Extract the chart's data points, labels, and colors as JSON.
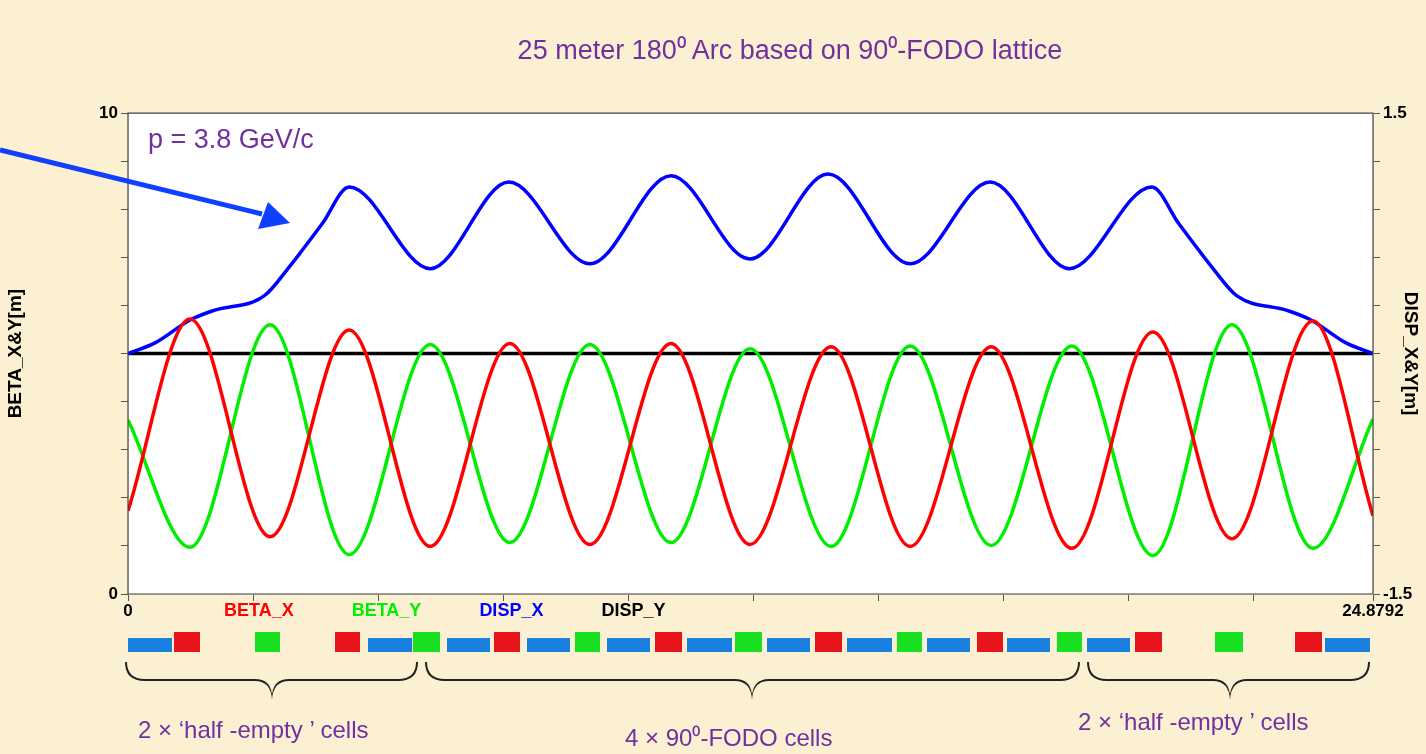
{
  "chart_data": {
    "type": "line",
    "title": "25 meter 180⁰ Arc based on 90⁰-FODO lattice",
    "ylabel": "BETA_X&Y[m]",
    "y2label": "DISP_X&Y[m]",
    "annotations": [
      "p = 3.8 GeV/c",
      "2 × ‘half -empty ’ cells",
      "4 ×  90⁰-FODO cells",
      "2 × ‘half -empty ’ cells"
    ],
    "xlim": [
      0,
      24.8792
    ],
    "xticks": [
      0,
      {
        "value": 2.5,
        "label": null
      },
      {
        "value": 5,
        "label": null
      },
      {
        "value": 7.5,
        "label": null
      },
      {
        "value": 10,
        "label": null
      },
      {
        "value": 12.5,
        "label": null
      },
      {
        "value": 15,
        "label": null
      },
      {
        "value": 17.5,
        "label": null
      },
      {
        "value": 20,
        "label": null
      },
      {
        "value": 22.5,
        "label": null
      },
      24.8792
    ],
    "ylim": [
      0,
      10
    ],
    "yticks": [
      0,
      {
        "value": 1,
        "label": null
      },
      {
        "value": 2,
        "label": null
      },
      {
        "value": 3,
        "label": null
      },
      {
        "value": 4,
        "label": null
      },
      {
        "value": 5,
        "label": null
      },
      {
        "value": 6,
        "label": null
      },
      {
        "value": 7,
        "label": null
      },
      {
        "value": 8,
        "label": null
      },
      {
        "value": 9,
        "label": null
      },
      10
    ],
    "y2lim": [
      -1.5,
      1.5
    ],
    "y2ticks": [
      -1.5,
      {
        "value": -1.2,
        "label": null
      },
      {
        "value": -0.9,
        "label": null
      },
      {
        "value": -0.6,
        "label": null
      },
      {
        "value": -0.3,
        "label": null
      },
      {
        "value": 0,
        "label": null
      },
      {
        "value": 0.3,
        "label": null
      },
      {
        "value": 0.6,
        "label": null
      },
      {
        "value": 0.9,
        "label": null
      },
      {
        "value": 1.2,
        "label": null
      },
      1.5
    ],
    "grid": false,
    "legend": "bottom",
    "marker": "none",
    "series": [
      {
        "name": "BETA_X",
        "color": "#ff0000",
        "x": [
          0,
          1.24,
          2.84,
          4.42,
          6.04,
          7.63,
          9.23,
          10.85,
          12.43,
          14.05,
          15.63,
          17.25,
          18.86,
          20.48,
          22.06,
          23.68,
          24.8792
        ],
        "values": [
          1.73,
          5.72,
          1.19,
          5.49,
          0.99,
          5.21,
          1.03,
          5.21,
          1.03,
          5.14,
          0.99,
          5.14,
          0.95,
          5.45,
          1.15,
          5.68,
          1.63
        ]
      },
      {
        "name": "BETA_Y",
        "color": "#00ee00",
        "x": [
          0,
          1.24,
          2.84,
          4.42,
          6.04,
          7.63,
          9.23,
          10.85,
          12.43,
          14.05,
          15.63,
          17.25,
          18.86,
          20.48,
          22.06,
          23.68,
          24.8792
        ],
        "values": [
          3.62,
          0.97,
          5.6,
          0.82,
          5.19,
          1.07,
          5.19,
          1.07,
          5.1,
          0.99,
          5.16,
          1.01,
          5.16,
          0.8,
          5.6,
          0.95,
          3.64
        ]
      },
      {
        "name": "DISP_X",
        "color": "#0000ff",
        "axis": "y2",
        "x": [
          0,
          0.56,
          1.24,
          1.72,
          2.72,
          3.22,
          3.88,
          4.42,
          6.04,
          7.61,
          9.23,
          10.85,
          12.43,
          13.99,
          15.63,
          17.23,
          18.81,
          20.46,
          21.0,
          21.66,
          22.16,
          23.16,
          23.64,
          24.32,
          24.8792
        ],
        "values": [
          0,
          0.07,
          0.21,
          0.27,
          0.36,
          0.54,
          0.81,
          1.04,
          0.53,
          1.07,
          0.56,
          1.11,
          0.59,
          1.12,
          0.56,
          1.07,
          0.53,
          1.04,
          0.81,
          0.54,
          0.36,
          0.27,
          0.21,
          0.07,
          0
        ]
      },
      {
        "name": "DISP_Y",
        "color": "#000000",
        "axis": "y2",
        "x": [
          0,
          24.8792
        ],
        "values": [
          0,
          0
        ]
      }
    ]
  }
}
